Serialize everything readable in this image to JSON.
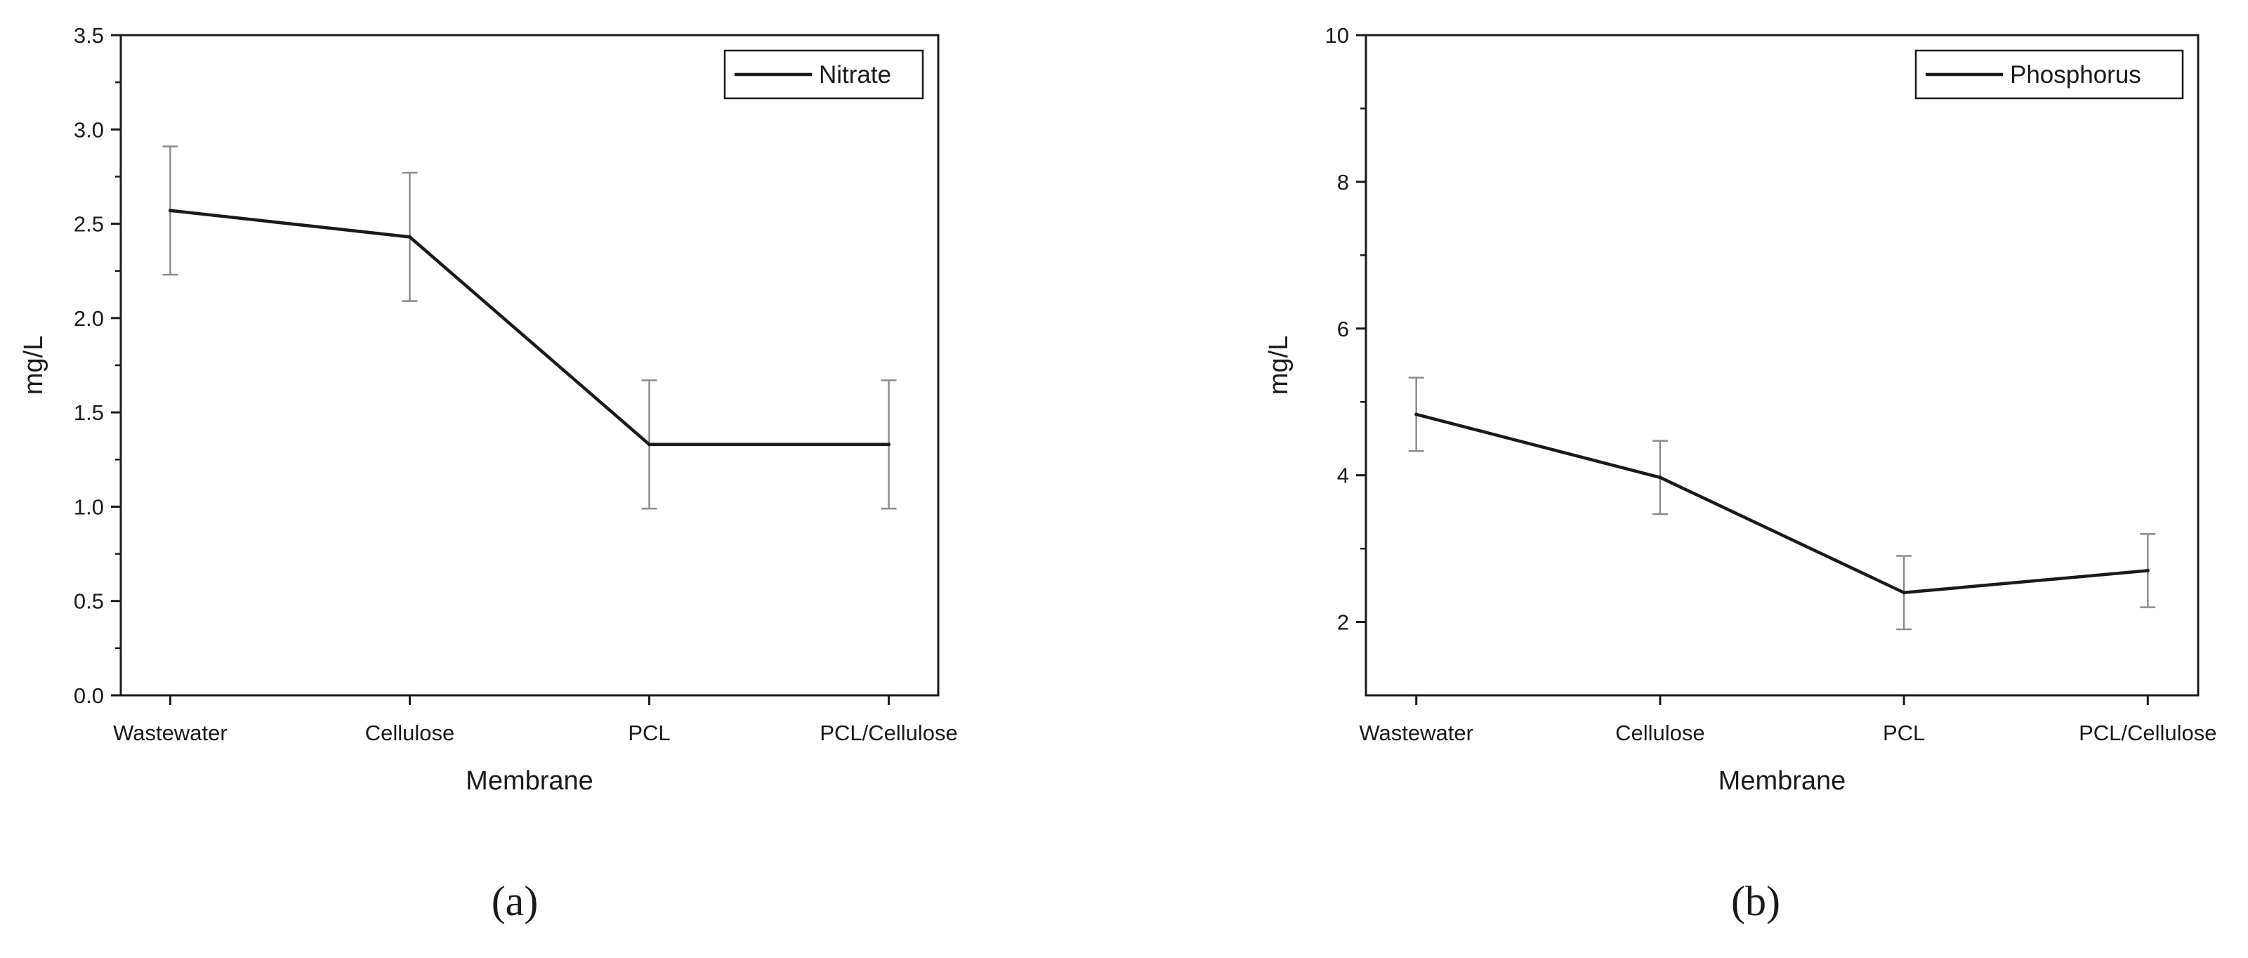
{
  "chart_data": [
    {
      "type": "line",
      "panel_label": "(a)",
      "categories": [
        "Wastewater",
        "Cellulose",
        "PCL",
        "PCL/Cellulose"
      ],
      "series": [
        {
          "name": "Nitrate",
          "values": [
            2.57,
            2.43,
            1.33,
            1.33
          ],
          "error": [
            0.34,
            0.34,
            0.34,
            0.34
          ]
        }
      ],
      "xlabel": "Membrane",
      "ylabel": "mg/L",
      "ylim": [
        0.0,
        3.5
      ],
      "yticks": [
        "0.0",
        "0.5",
        "1.0",
        "1.5",
        "2.0",
        "2.5",
        "3.0",
        "3.5"
      ],
      "ytick_values": [
        0,
        0.5,
        1.0,
        1.5,
        2.0,
        2.5,
        3.0,
        3.5
      ],
      "grid": false,
      "legend_position": "top-right",
      "line_color": "#1a1a1a",
      "errorbar_color": "#8c8c8c"
    },
    {
      "type": "line",
      "panel_label": "(b)",
      "categories": [
        "Wastewater",
        "Cellulose",
        "PCL",
        "PCL/Cellulose"
      ],
      "series": [
        {
          "name": "Phosphorus",
          "values": [
            4.83,
            3.97,
            2.4,
            2.7
          ],
          "error": [
            0.5,
            0.5,
            0.5,
            0.5
          ]
        }
      ],
      "xlabel": "Membrane",
      "ylabel": "mg/L",
      "ylim": [
        1,
        10
      ],
      "yticks": [
        "2",
        "4",
        "6",
        "8",
        "10"
      ],
      "ytick_values": [
        2,
        4,
        6,
        8,
        10
      ],
      "grid": false,
      "legend_position": "top-right",
      "line_color": "#1a1a1a",
      "errorbar_color": "#8c8c8c"
    }
  ]
}
